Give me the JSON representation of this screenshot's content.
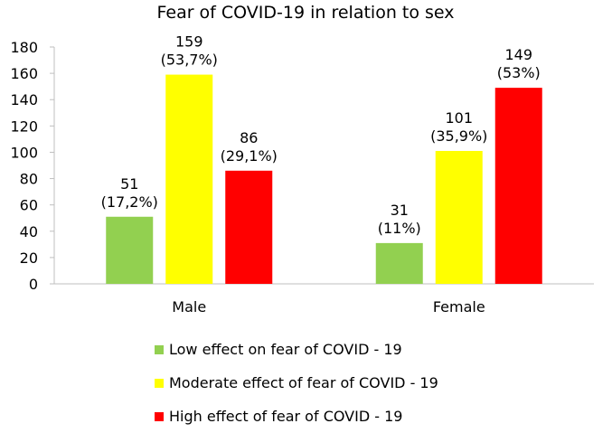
{
  "chart_data": {
    "type": "bar",
    "title": "Fear of COVID-19 in relation to sex",
    "xlabel": "",
    "ylabel": "",
    "ylim": [
      0,
      180
    ],
    "ytick_step": 20,
    "ytick_labels": [
      "0",
      "20",
      "40",
      "60",
      "80",
      "100",
      "120",
      "140",
      "160",
      "180"
    ],
    "grid": false,
    "legend_position": "bottom",
    "categories": [
      "Male",
      "Female"
    ],
    "series": [
      {
        "name": "Low effect on fear of COVID - 19",
        "color": "#92d050",
        "values": [
          51,
          31
        ],
        "labels": [
          [
            "51",
            "(17,2%)"
          ],
          [
            "31",
            "(11%)"
          ]
        ]
      },
      {
        "name": "Moderate effect of fear of COVID - 19",
        "color": "#ffff00",
        "values": [
          159,
          101
        ],
        "labels": [
          [
            "159",
            "(53,7%)"
          ],
          [
            "101",
            "(35,9%)"
          ]
        ]
      },
      {
        "name": "High effect of fear of COVID - 19",
        "color": "#ff0000",
        "values": [
          86,
          149
        ],
        "labels": [
          [
            "86",
            "(29,1%)"
          ],
          [
            "149",
            "(53%)"
          ]
        ]
      }
    ]
  }
}
